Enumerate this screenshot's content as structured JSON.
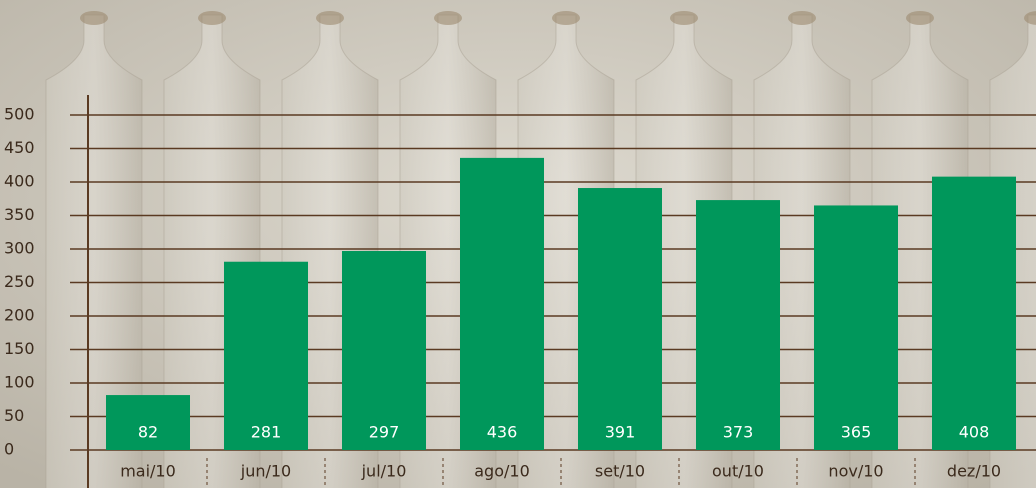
{
  "chart_data": {
    "type": "bar",
    "categories": [
      "mai/10",
      "jun/10",
      "jul/10",
      "ago/10",
      "set/10",
      "out/10",
      "nov/10",
      "dez/10"
    ],
    "values": [
      82,
      281,
      297,
      436,
      391,
      373,
      365,
      408
    ],
    "color": "#00975b",
    "ylim": [
      0,
      500
    ],
    "yticks": [
      0,
      50,
      100,
      150,
      200,
      250,
      300,
      350,
      400,
      450,
      500
    ],
    "grid": true
  }
}
